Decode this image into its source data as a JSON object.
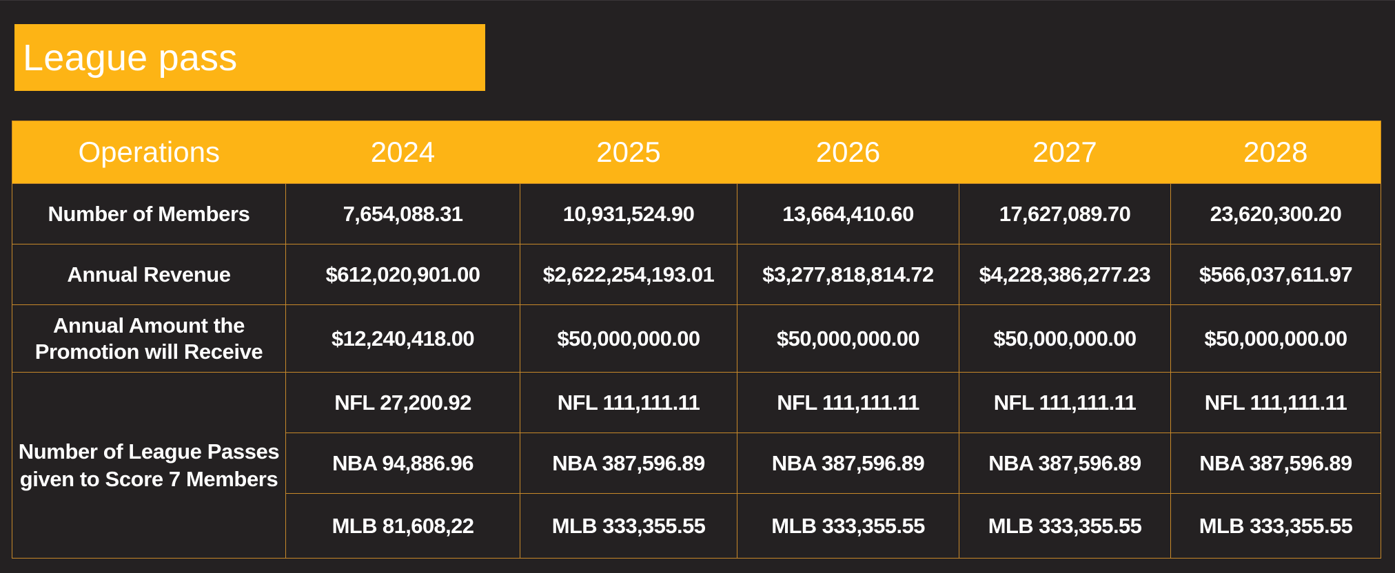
{
  "title": "League pass",
  "table": {
    "headers": [
      "Operations",
      "2024",
      "2025",
      "2026",
      "2027",
      "2028"
    ],
    "rows": {
      "members": {
        "label": "Number of Members",
        "values": [
          "7,654,088.31",
          "10,931,524.90",
          "13,664,410.60",
          "17,627,089.70",
          "23,620,300.20"
        ]
      },
      "revenue": {
        "label": "Annual Revenue",
        "values": [
          "$612,020,901.00",
          "$2,622,254,193.01",
          "$3,277,818,814.72",
          "$4,228,386,277.23",
          "$566,037,611.97"
        ]
      },
      "promotion": {
        "label": "Annual Amount the Promotion will Receive",
        "values": [
          "$12,240,418.00",
          "$50,000,000.00",
          "$50,000,000.00",
          "$50,000,000.00",
          "$50,000,000.00"
        ]
      },
      "passes": {
        "label": "Number of League Passes given to Score 7 Members",
        "nfl": [
          "NFL 27,200.92",
          "NFL 111,111.11",
          "NFL 111,111.11",
          "NFL 111,111.11",
          "NFL 111,111.11"
        ],
        "nba": [
          "NBA 94,886.96",
          "NBA 387,596.89",
          "NBA 387,596.89",
          "NBA 387,596.89",
          "NBA 387,596.89"
        ],
        "mlb": [
          "MLB 81,608,22",
          "MLB 333,355.55",
          "MLB 333,355.55",
          "MLB 333,355.55",
          "MLB 333,355.55"
        ]
      }
    }
  },
  "colors": {
    "background": "#242122",
    "accent": "#fdb415",
    "border": "#c8892a",
    "text": "#ffffff"
  }
}
